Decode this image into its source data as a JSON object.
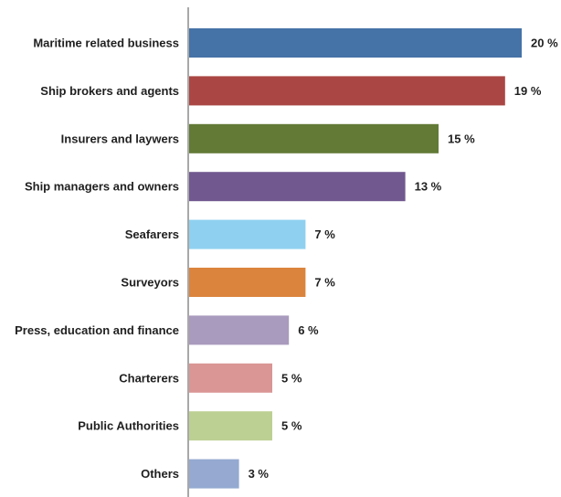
{
  "chart_data": {
    "type": "bar",
    "orientation": "horizontal",
    "title": "",
    "xlabel": "",
    "ylabel": "",
    "unit": "%",
    "xlim": [
      0,
      20
    ],
    "grid": false,
    "legend": "none",
    "categories": [
      "Maritime related business",
      "Ship brokers and agents",
      "Insurers and laywers",
      "Ship managers and owners",
      "Seafarers",
      "Surveyors",
      "Press, education and finance",
      "Charterers",
      "Public Authorities",
      "Others"
    ],
    "values": [
      20,
      19,
      15,
      13,
      7,
      7,
      6,
      5,
      5,
      3
    ],
    "value_labels": [
      "20 %",
      "19 %",
      "15 %",
      "13 %",
      "7 %",
      "7 %",
      "6 %",
      "5 %",
      "5 %",
      "3 %"
    ],
    "colors": [
      "#4572a7",
      "#aa4643",
      "#627a36",
      "#71588f",
      "#8fd0f0",
      "#db843d",
      "#a99bbd",
      "#d99694",
      "#bdd094",
      "#95a9d1"
    ]
  }
}
